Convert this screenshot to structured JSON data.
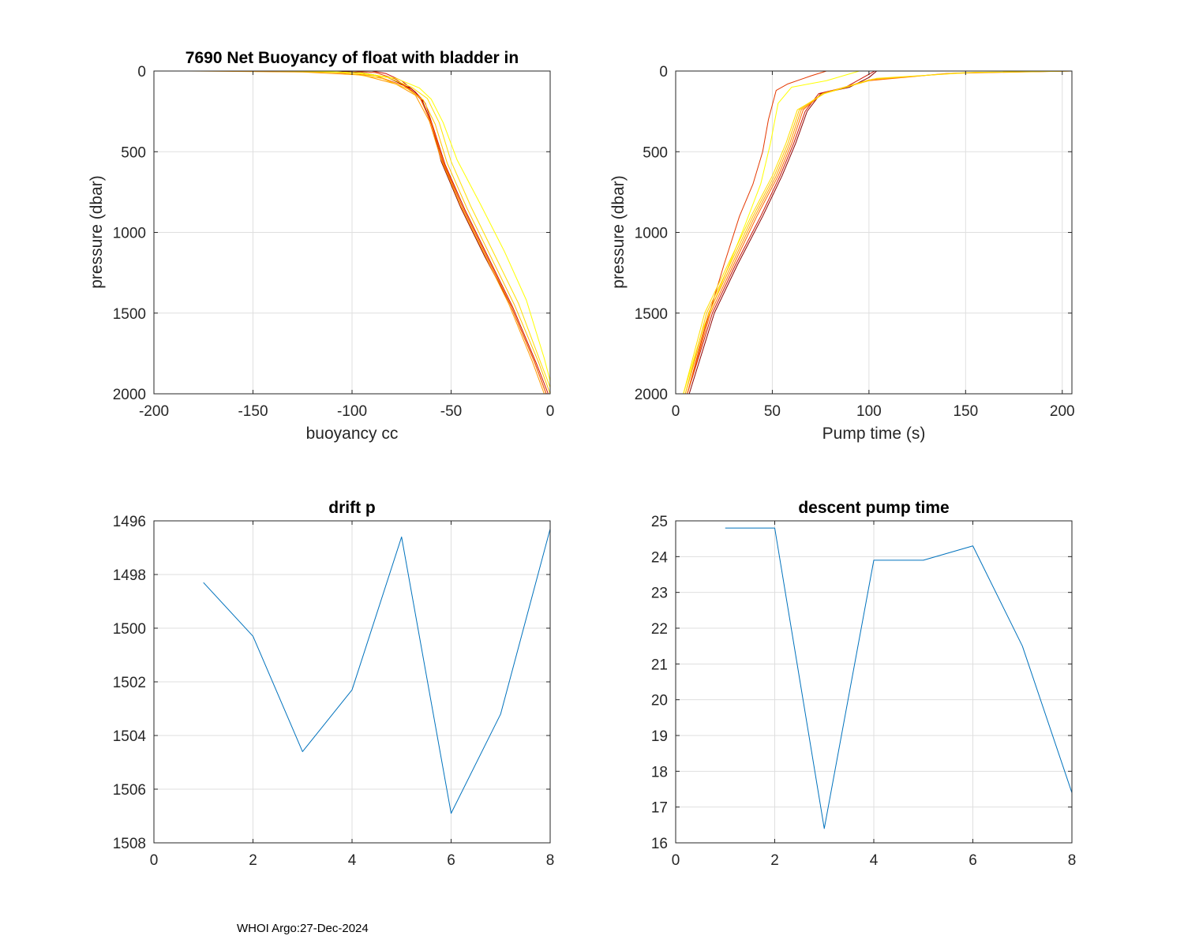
{
  "footer": "WHOI Argo:27-Dec-2024",
  "chart_data": [
    {
      "type": "line",
      "title": "7690 Net Buoyancy of float with bladder in",
      "xlabel": "buoyancy cc",
      "ylabel": "pressure (dbar)",
      "xlim": [
        -200,
        0
      ],
      "ylim": [
        0,
        2000
      ],
      "y_reversed": true,
      "grid": true,
      "xticks": [
        -200,
        -150,
        -100,
        -50,
        0
      ],
      "yticks": [
        0,
        500,
        1000,
        1500,
        2000
      ],
      "series": [
        {
          "color": "#8b0000",
          "x": [
            -108,
            -95,
            -82,
            -70,
            -65,
            -60,
            -55,
            -45,
            -33,
            -20,
            -8,
            -2
          ],
          "y": [
            0,
            10,
            40,
            110,
            170,
            320,
            560,
            850,
            1150,
            1450,
            1800,
            2000
          ]
        },
        {
          "color": "#cc1100",
          "x": [
            -90,
            -83,
            -75,
            -68,
            -63,
            -59,
            -53,
            -43,
            -31,
            -19,
            -7,
            -1
          ],
          "y": [
            0,
            15,
            60,
            130,
            200,
            350,
            580,
            860,
            1160,
            1460,
            1810,
            2000
          ]
        },
        {
          "color": "#e53800",
          "x": [
            -100,
            -88,
            -78,
            -70,
            -65,
            -60,
            -54,
            -44,
            -32,
            -20,
            -8,
            -2
          ],
          "y": [
            0,
            10,
            50,
            120,
            180,
            330,
            570,
            850,
            1150,
            1450,
            1800,
            2000
          ]
        },
        {
          "color": "#ff6a00",
          "x": [
            -160,
            -110,
            -88,
            -74,
            -66,
            -60,
            -54,
            -44,
            -32,
            -20,
            -8,
            -2
          ],
          "y": [
            0,
            8,
            30,
            90,
            160,
            320,
            560,
            850,
            1150,
            1450,
            1800,
            2000
          ]
        },
        {
          "color": "#ff9a00",
          "x": [
            -183,
            -125,
            -95,
            -78,
            -68,
            -61,
            -55,
            -45,
            -33,
            -21,
            -9,
            -3
          ],
          "y": [
            0,
            6,
            25,
            80,
            150,
            310,
            550,
            840,
            1140,
            1440,
            1800,
            2000
          ]
        },
        {
          "color": "#ffc000",
          "x": [
            -140,
            -105,
            -85,
            -72,
            -64,
            -58,
            -52,
            -42,
            -30,
            -18,
            -6,
            0
          ],
          "y": [
            0,
            10,
            45,
            110,
            180,
            330,
            570,
            850,
            1150,
            1450,
            1800,
            2000
          ]
        },
        {
          "color": "#ffe000",
          "x": [
            -130,
            -100,
            -82,
            -70,
            -62,
            -56,
            -50,
            -40,
            -28,
            -16,
            -5,
            0
          ],
          "y": [
            0,
            10,
            40,
            100,
            170,
            320,
            560,
            840,
            1140,
            1440,
            1800,
            1960
          ]
        },
        {
          "color": "#ffff00",
          "x": [
            -120,
            -95,
            -78,
            -66,
            -60,
            -54,
            -47,
            -35,
            -23,
            -12,
            -3,
            0
          ],
          "y": [
            0,
            12,
            45,
            105,
            175,
            320,
            550,
            830,
            1120,
            1420,
            1780,
            1920
          ]
        }
      ]
    },
    {
      "type": "line",
      "title": "",
      "xlabel": "Pump time (s)",
      "ylabel": "pressure (dbar)",
      "xlim": [
        0,
        205
      ],
      "ylim": [
        0,
        2000
      ],
      "y_reversed": true,
      "grid": true,
      "xticks": [
        0,
        50,
        100,
        150,
        200
      ],
      "yticks": [
        0,
        500,
        1000,
        1500,
        2000
      ],
      "series": [
        {
          "color": "#e53800",
          "x": [
            6,
            15,
            25,
            33,
            40,
            45,
            48,
            52,
            58,
            70,
            78
          ],
          "y": [
            2000,
            1600,
            1200,
            900,
            700,
            500,
            300,
            120,
            80,
            30,
            0
          ]
        },
        {
          "color": "#ffff00",
          "x": [
            4,
            14,
            26,
            36,
            44,
            49,
            53,
            60,
            78,
            95
          ],
          "y": [
            2000,
            1600,
            1250,
            950,
            700,
            450,
            200,
            100,
            60,
            0
          ]
        },
        {
          "color": "#8b0000",
          "x": [
            7,
            20,
            32,
            45,
            55,
            62,
            68,
            75,
            90,
            100,
            104
          ],
          "y": [
            2000,
            1500,
            1200,
            900,
            650,
            450,
            250,
            140,
            100,
            40,
            0
          ]
        },
        {
          "color": "#cc1100",
          "x": [
            6,
            19,
            31,
            44,
            54,
            61,
            67,
            74,
            88,
            97,
            103
          ],
          "y": [
            2000,
            1500,
            1200,
            900,
            650,
            450,
            250,
            140,
            100,
            40,
            0
          ]
        },
        {
          "color": "#ff6a00",
          "x": [
            6,
            18,
            30,
            42,
            53,
            60,
            66,
            76,
            100,
            140,
            205
          ],
          "y": [
            2000,
            1500,
            1200,
            900,
            650,
            450,
            240,
            140,
            60,
            15,
            0
          ]
        },
        {
          "color": "#ff9a00",
          "x": [
            5,
            17,
            29,
            41,
            52,
            59,
            65,
            76,
            100,
            145,
            205
          ],
          "y": [
            2000,
            1500,
            1200,
            900,
            650,
            450,
            240,
            140,
            55,
            12,
            0
          ]
        },
        {
          "color": "#ffc000",
          "x": [
            5,
            16,
            28,
            40,
            51,
            58,
            64,
            76,
            102,
            150,
            205
          ],
          "y": [
            2000,
            1500,
            1200,
            900,
            650,
            450,
            240,
            140,
            50,
            10,
            0
          ]
        },
        {
          "color": "#ffe000",
          "x": [
            4,
            15,
            27,
            39,
            50,
            57,
            63,
            77,
            104,
            155,
            205
          ],
          "y": [
            2000,
            1500,
            1200,
            900,
            650,
            450,
            240,
            140,
            45,
            8,
            0
          ]
        }
      ]
    },
    {
      "type": "line",
      "title": "drift p",
      "xlabel": "",
      "ylabel": "",
      "xlim": [
        0,
        8
      ],
      "ylim": [
        1496,
        1508
      ],
      "y_reversed": true,
      "grid": true,
      "xticks": [
        0,
        2,
        4,
        6,
        8
      ],
      "yticks": [
        1496,
        1498,
        1500,
        1502,
        1504,
        1506,
        1508
      ],
      "series": [
        {
          "color": "#0072bd",
          "x": [
            1,
            2,
            3,
            4,
            5,
            6,
            7,
            8
          ],
          "y": [
            1498.3,
            1500.3,
            1504.6,
            1502.3,
            1496.6,
            1506.9,
            1503.2,
            1496.3
          ]
        }
      ]
    },
    {
      "type": "line",
      "title": "descent pump time",
      "xlabel": "",
      "ylabel": "",
      "xlim": [
        0,
        8
      ],
      "ylim": [
        16,
        25
      ],
      "y_reversed": false,
      "grid": true,
      "xticks": [
        0,
        2,
        4,
        6,
        8
      ],
      "yticks": [
        16,
        17,
        18,
        19,
        20,
        21,
        22,
        23,
        24,
        25
      ],
      "series": [
        {
          "color": "#0072bd",
          "x": [
            1,
            2,
            3,
            4,
            5,
            6,
            7,
            8
          ],
          "y": [
            24.8,
            24.8,
            16.4,
            23.9,
            23.9,
            24.3,
            21.5,
            17.4
          ]
        }
      ]
    }
  ]
}
